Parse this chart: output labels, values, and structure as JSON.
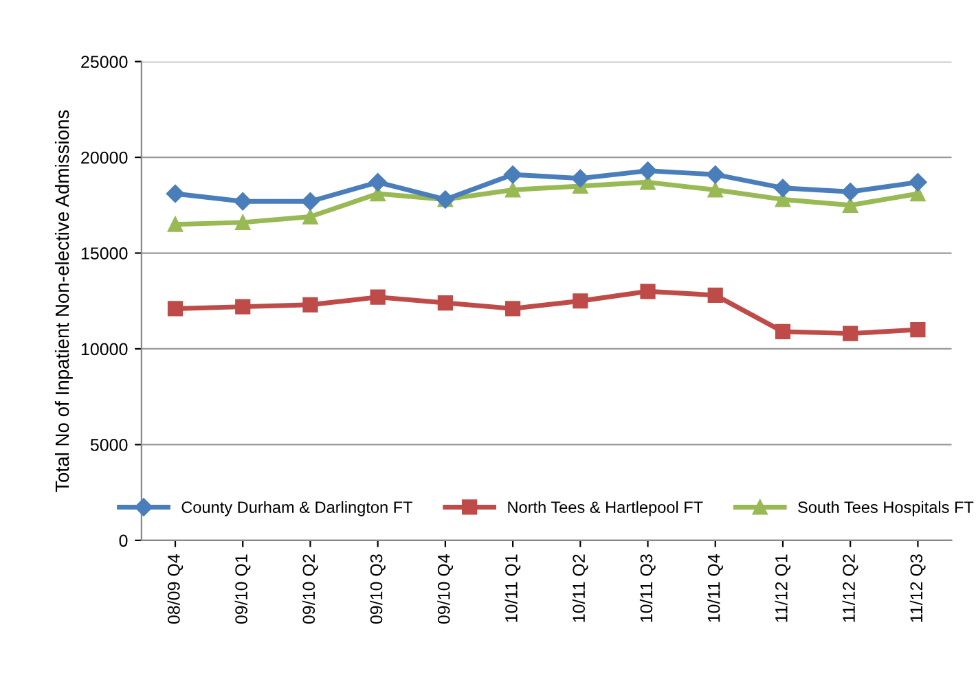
{
  "chart_data": {
    "type": "line",
    "ylabel": "Total No of Inpatient Non-elective Admissions",
    "categories": [
      "08/09 Q4",
      "09/10 Q1",
      "09/10 Q2",
      "09/10 Q3",
      "09/10 Q4",
      "10/11 Q1",
      "10/11 Q2",
      "10/11 Q3",
      "10/11 Q4",
      "11/12 Q1",
      "11/12 Q2",
      "11/12 Q3"
    ],
    "series": [
      {
        "name": "County Durham & Darlington FT",
        "color": "#4a7ebb",
        "marker": "diamond",
        "values": [
          18100,
          17700,
          17700,
          18700,
          17800,
          19100,
          18900,
          19300,
          19100,
          18400,
          18200,
          18700
        ]
      },
      {
        "name": "North Tees & Hartlepool FT",
        "color": "#be4b48",
        "marker": "square",
        "values": [
          12100,
          12200,
          12300,
          12700,
          12400,
          12100,
          12500,
          13000,
          12800,
          10900,
          10800,
          11000
        ]
      },
      {
        "name": "South Tees Hospitals FT",
        "color": "#98b954",
        "marker": "triangle",
        "values": [
          16500,
          16600,
          16900,
          18100,
          17800,
          18300,
          18500,
          18700,
          18300,
          17800,
          17500,
          18100
        ]
      }
    ],
    "ylim": [
      0,
      25000
    ],
    "yticks": [
      0,
      5000,
      10000,
      15000,
      20000,
      25000
    ],
    "grid": "y",
    "legend": "bottom",
    "line_style": "solid"
  }
}
